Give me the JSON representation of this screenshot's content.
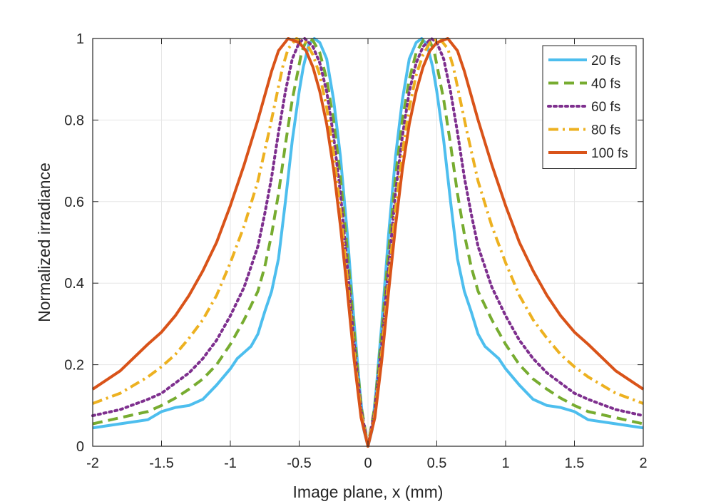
{
  "chart_data": {
    "type": "line",
    "xlabel": "Image plane, x (mm)",
    "ylabel": "Normalized irradiance",
    "xlim": [
      -2,
      2
    ],
    "ylim": [
      0,
      1
    ],
    "xticks": [
      -2,
      -1.5,
      -1,
      -0.5,
      0,
      0.5,
      1,
      1.5,
      2
    ],
    "xtick_labels": [
      "-2",
      "-1.5",
      "-1",
      "-0.5",
      "0",
      "0.5",
      "1",
      "1.5",
      "2"
    ],
    "yticks": [
      0,
      0.2,
      0.4,
      0.6,
      0.8,
      1
    ],
    "ytick_labels": [
      "0",
      "0.2",
      "0.4",
      "0.6",
      "0.8",
      "1"
    ],
    "grid": true,
    "legend_position": "top-right",
    "symmetric_about_zero": true,
    "series": [
      {
        "name": "20 fs",
        "color": "#4DBEEE",
        "style": "solid",
        "x": [
          0,
          0.03,
          0.06,
          0.1,
          0.15,
          0.2,
          0.25,
          0.3,
          0.35,
          0.39,
          0.43,
          0.47,
          0.5,
          0.55,
          0.6,
          0.65,
          0.7,
          0.75,
          0.8,
          0.85,
          0.9,
          0.95,
          1.0,
          1.1,
          1.2,
          1.3,
          1.4,
          1.5,
          1.6,
          1.8,
          2.0
        ],
        "y": [
          0,
          0.04,
          0.14,
          0.3,
          0.52,
          0.71,
          0.85,
          0.95,
          0.99,
          1.0,
          0.985,
          0.93,
          0.87,
          0.75,
          0.6,
          0.46,
          0.38,
          0.33,
          0.275,
          0.245,
          0.23,
          0.215,
          0.19,
          0.15,
          0.115,
          0.1,
          0.095,
          0.085,
          0.065,
          0.055,
          0.045
        ]
      },
      {
        "name": "40 fs",
        "color": "#77AC30",
        "style": "dashed",
        "x": [
          0,
          0.05,
          0.1,
          0.15,
          0.2,
          0.25,
          0.3,
          0.35,
          0.4,
          0.44,
          0.48,
          0.55,
          0.6,
          0.65,
          0.7,
          0.75,
          0.8,
          0.9,
          1.0,
          1.1,
          1.2,
          1.3,
          1.4,
          1.5,
          1.6,
          1.8,
          2.0
        ],
        "y": [
          0,
          0.1,
          0.28,
          0.48,
          0.66,
          0.8,
          0.9,
          0.965,
          0.995,
          1.0,
          0.97,
          0.85,
          0.74,
          0.62,
          0.52,
          0.44,
          0.38,
          0.31,
          0.25,
          0.2,
          0.165,
          0.14,
          0.118,
          0.1,
          0.085,
          0.07,
          0.055
        ]
      },
      {
        "name": "60 fs",
        "color": "#7E2F8E",
        "style": "dotted",
        "x": [
          0,
          0.05,
          0.1,
          0.15,
          0.2,
          0.25,
          0.3,
          0.35,
          0.4,
          0.46,
          0.5,
          0.55,
          0.6,
          0.65,
          0.7,
          0.75,
          0.8,
          0.9,
          1.0,
          1.1,
          1.2,
          1.3,
          1.4,
          1.5,
          1.6,
          1.8,
          2.0
        ],
        "y": [
          0,
          0.09,
          0.25,
          0.44,
          0.62,
          0.76,
          0.87,
          0.94,
          0.98,
          1.0,
          0.99,
          0.95,
          0.87,
          0.77,
          0.66,
          0.57,
          0.49,
          0.39,
          0.32,
          0.26,
          0.215,
          0.18,
          0.155,
          0.13,
          0.115,
          0.09,
          0.075
        ]
      },
      {
        "name": "80 fs",
        "color": "#EDB120",
        "style": "dashdot",
        "x": [
          0,
          0.05,
          0.1,
          0.15,
          0.2,
          0.25,
          0.3,
          0.35,
          0.4,
          0.45,
          0.52,
          0.58,
          0.62,
          0.67,
          0.72,
          0.8,
          0.9,
          1.0,
          1.1,
          1.2,
          1.3,
          1.4,
          1.5,
          1.6,
          1.8,
          2.0
        ],
        "y": [
          0,
          0.08,
          0.23,
          0.41,
          0.58,
          0.72,
          0.83,
          0.91,
          0.96,
          0.99,
          1.0,
          0.975,
          0.93,
          0.85,
          0.77,
          0.65,
          0.54,
          0.45,
          0.37,
          0.31,
          0.265,
          0.225,
          0.195,
          0.17,
          0.13,
          0.105
        ]
      },
      {
        "name": "100 fs",
        "color": "#D95319",
        "style": "solid",
        "x": [
          0,
          0.05,
          0.1,
          0.15,
          0.2,
          0.25,
          0.3,
          0.35,
          0.4,
          0.45,
          0.5,
          0.58,
          0.65,
          0.7,
          0.75,
          0.8,
          0.9,
          1.0,
          1.1,
          1.2,
          1.3,
          1.4,
          1.5,
          1.6,
          1.8,
          2.0
        ],
        "y": [
          0,
          0.07,
          0.21,
          0.38,
          0.54,
          0.68,
          0.79,
          0.87,
          0.93,
          0.97,
          0.99,
          1.0,
          0.97,
          0.92,
          0.86,
          0.8,
          0.69,
          0.59,
          0.5,
          0.43,
          0.37,
          0.32,
          0.28,
          0.25,
          0.185,
          0.14
        ]
      }
    ]
  }
}
